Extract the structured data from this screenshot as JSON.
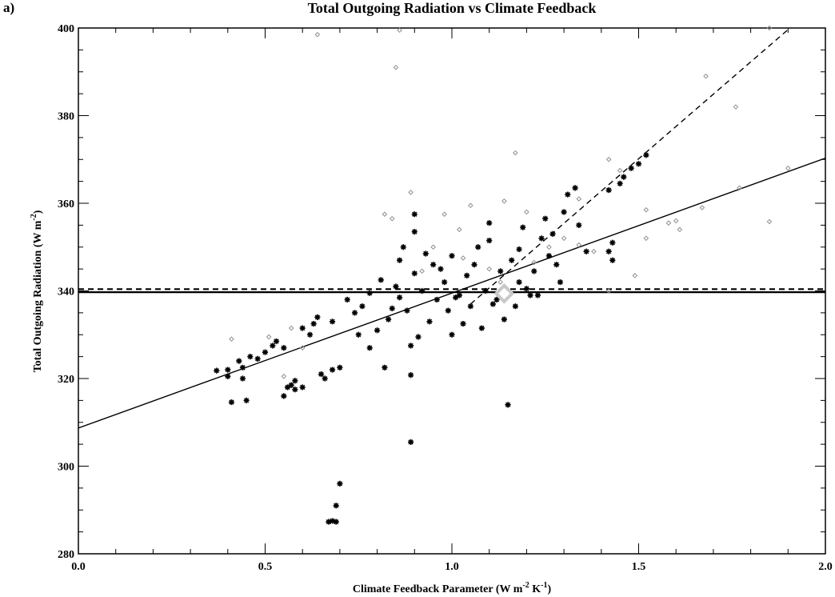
{
  "panel_label": "a)",
  "chart_data": {
    "type": "scatter",
    "title": "Total Outgoing Radiation vs Climate Feedback",
    "xlabel": "Climate Feedback Parameter (W m",
    "xlabel_sup1": "-2",
    "xlabel_mid": " K",
    "xlabel_sup2": "-1",
    "xlabel_end": ")",
    "ylabel": "Total Outgoing Radiation (W m",
    "ylabel_sup": "-2",
    "ylabel_end": ")",
    "xlim": [
      0.0,
      2.0
    ],
    "ylim": [
      280,
      400
    ],
    "x_ticks": [
      "0.0",
      "0.5",
      "1.0",
      "1.5",
      "2.0"
    ],
    "x_tick_values": [
      0.0,
      0.5,
      1.0,
      1.5,
      2.0
    ],
    "y_ticks": [
      "280",
      "300",
      "320",
      "340",
      "360",
      "380",
      "400"
    ],
    "y_tick_values": [
      280,
      300,
      320,
      340,
      360,
      380,
      400
    ],
    "grid": false,
    "reference_lines": [
      {
        "kind": "horizontal",
        "y": 339.7,
        "style": "solid"
      },
      {
        "kind": "horizontal",
        "y": 340.4,
        "style": "dashed"
      },
      {
        "kind": "line",
        "x0": 0.0,
        "y0": 308.7,
        "x1": 2.0,
        "y1": 370.3,
        "style": "solid"
      },
      {
        "kind": "line",
        "x0": 1.05,
        "y0": 337.0,
        "x1": 2.0,
        "y1": 407.0,
        "style": "dashed"
      }
    ],
    "highlight_point": {
      "x": 1.14,
      "y": 339.4,
      "marker": "large-diamond",
      "color": "#c8c8c8"
    },
    "series": [
      {
        "marker": "asterisk",
        "color": "#000000",
        "points": [
          [
            0.37,
            321.8
          ],
          [
            0.4,
            322.0
          ],
          [
            0.4,
            320.5
          ],
          [
            0.41,
            314.6
          ],
          [
            0.44,
            320.0
          ],
          [
            0.44,
            322.5
          ],
          [
            0.45,
            315.0
          ],
          [
            0.43,
            324.0
          ],
          [
            0.46,
            325.0
          ],
          [
            0.48,
            324.5
          ],
          [
            0.5,
            326.0
          ],
          [
            0.52,
            327.5
          ],
          [
            0.53,
            328.5
          ],
          [
            0.55,
            327.0
          ],
          [
            0.55,
            316.0
          ],
          [
            0.56,
            318.0
          ],
          [
            0.57,
            318.5
          ],
          [
            0.58,
            317.5
          ],
          [
            0.58,
            319.5
          ],
          [
            0.6,
            318.0
          ],
          [
            0.6,
            331.5
          ],
          [
            0.62,
            330.0
          ],
          [
            0.63,
            332.5
          ],
          [
            0.64,
            334.0
          ],
          [
            0.65,
            321.0
          ],
          [
            0.66,
            320.0
          ],
          [
            0.68,
            322.0
          ],
          [
            0.68,
            333.0
          ],
          [
            0.7,
            322.5
          ],
          [
            0.7,
            296.0
          ],
          [
            0.69,
            291.0
          ],
          [
            0.68,
            287.5
          ],
          [
            0.67,
            287.3
          ],
          [
            0.69,
            287.3
          ],
          [
            0.72,
            338.0
          ],
          [
            0.75,
            330.0
          ],
          [
            0.76,
            336.5
          ],
          [
            0.78,
            339.5
          ],
          [
            0.8,
            331.0
          ],
          [
            0.82,
            322.5
          ],
          [
            0.84,
            336.0
          ],
          [
            0.85,
            341.0
          ],
          [
            0.86,
            338.5
          ],
          [
            0.86,
            347.0
          ],
          [
            0.88,
            335.5
          ],
          [
            0.89,
            327.5
          ],
          [
            0.89,
            320.8
          ],
          [
            0.89,
            305.5
          ],
          [
            0.9,
            353.5
          ],
          [
            0.9,
            357.5
          ],
          [
            0.9,
            344.0
          ],
          [
            0.92,
            340.0
          ],
          [
            0.94,
            333.0
          ],
          [
            0.95,
            346.0
          ],
          [
            0.96,
            338.0
          ],
          [
            0.98,
            342.0
          ],
          [
            0.99,
            335.5
          ],
          [
            1.0,
            348.0
          ],
          [
            1.0,
            330.0
          ],
          [
            1.02,
            339.0
          ],
          [
            1.04,
            343.5
          ],
          [
            1.05,
            336.5
          ],
          [
            1.06,
            346.0
          ],
          [
            1.08,
            331.5
          ],
          [
            1.09,
            340.0
          ],
          [
            1.1,
            351.5
          ],
          [
            1.1,
            355.5
          ],
          [
            1.12,
            338.0
          ],
          [
            1.13,
            344.5
          ],
          [
            1.14,
            333.5
          ],
          [
            1.15,
            314.0
          ],
          [
            1.16,
            347.0
          ],
          [
            1.17,
            336.5
          ],
          [
            1.18,
            349.5
          ],
          [
            1.18,
            342.0
          ],
          [
            1.2,
            340.5
          ],
          [
            1.21,
            339.0
          ],
          [
            1.22,
            344.5
          ],
          [
            1.23,
            339.0
          ],
          [
            1.24,
            352.0
          ],
          [
            1.25,
            356.5
          ],
          [
            1.26,
            348.0
          ],
          [
            1.27,
            353.0
          ],
          [
            1.28,
            346.0
          ],
          [
            1.3,
            358.0
          ],
          [
            1.31,
            362.0
          ],
          [
            1.33,
            363.5
          ],
          [
            1.34,
            355.0
          ],
          [
            1.36,
            349.0
          ],
          [
            1.42,
            363.0
          ],
          [
            1.42,
            349.0
          ],
          [
            1.43,
            351.0
          ],
          [
            1.43,
            347.0
          ],
          [
            1.45,
            364.5
          ],
          [
            1.46,
            366.0
          ],
          [
            1.48,
            368.0
          ],
          [
            1.5,
            369.0
          ],
          [
            1.52,
            371.0
          ],
          [
            0.74,
            335.0
          ],
          [
            0.78,
            327.0
          ],
          [
            0.81,
            342.5
          ],
          [
            0.83,
            333.5
          ],
          [
            0.87,
            350.0
          ],
          [
            0.91,
            329.5
          ],
          [
            0.93,
            348.5
          ],
          [
            0.97,
            345.0
          ],
          [
            1.01,
            338.5
          ],
          [
            1.03,
            332.5
          ],
          [
            1.07,
            350.0
          ],
          [
            1.11,
            337.0
          ],
          [
            1.19,
            354.5
          ],
          [
            1.29,
            342.0
          ]
        ]
      },
      {
        "marker": "small-diamond",
        "color": "#909090",
        "points": [
          [
            0.41,
            329.0
          ],
          [
            0.51,
            329.5
          ],
          [
            0.55,
            320.5
          ],
          [
            0.57,
            331.5
          ],
          [
            0.6,
            327.0
          ],
          [
            0.64,
            398.5
          ],
          [
            0.82,
            357.5
          ],
          [
            0.84,
            356.5
          ],
          [
            0.85,
            391.0
          ],
          [
            0.86,
            399.5
          ],
          [
            0.89,
            362.5
          ],
          [
            0.95,
            350.0
          ],
          [
            0.98,
            357.5
          ],
          [
            1.02,
            354.0
          ],
          [
            1.05,
            359.5
          ],
          [
            1.1,
            345.0
          ],
          [
            1.14,
            360.5
          ],
          [
            1.17,
            371.5
          ],
          [
            1.2,
            358.0
          ],
          [
            1.26,
            350.0
          ],
          [
            1.3,
            352.0
          ],
          [
            1.34,
            361.0
          ],
          [
            1.38,
            349.0
          ],
          [
            1.42,
            370.0
          ],
          [
            1.42,
            340.0
          ],
          [
            1.45,
            367.5
          ],
          [
            1.49,
            343.5
          ],
          [
            1.52,
            358.5
          ],
          [
            1.52,
            352.0
          ],
          [
            1.58,
            355.5
          ],
          [
            1.6,
            356.0
          ],
          [
            1.61,
            354.0
          ],
          [
            1.67,
            359.0
          ],
          [
            1.68,
            389.0
          ],
          [
            1.76,
            382.0
          ],
          [
            1.77,
            363.5
          ],
          [
            1.85,
            355.8
          ],
          [
            1.85,
            400.0
          ],
          [
            1.9,
            368.0
          ],
          [
            1.13,
            342.0
          ],
          [
            1.03,
            347.5
          ],
          [
            0.92,
            344.5
          ],
          [
            1.22,
            346.5
          ],
          [
            1.34,
            350.5
          ]
        ]
      }
    ]
  }
}
